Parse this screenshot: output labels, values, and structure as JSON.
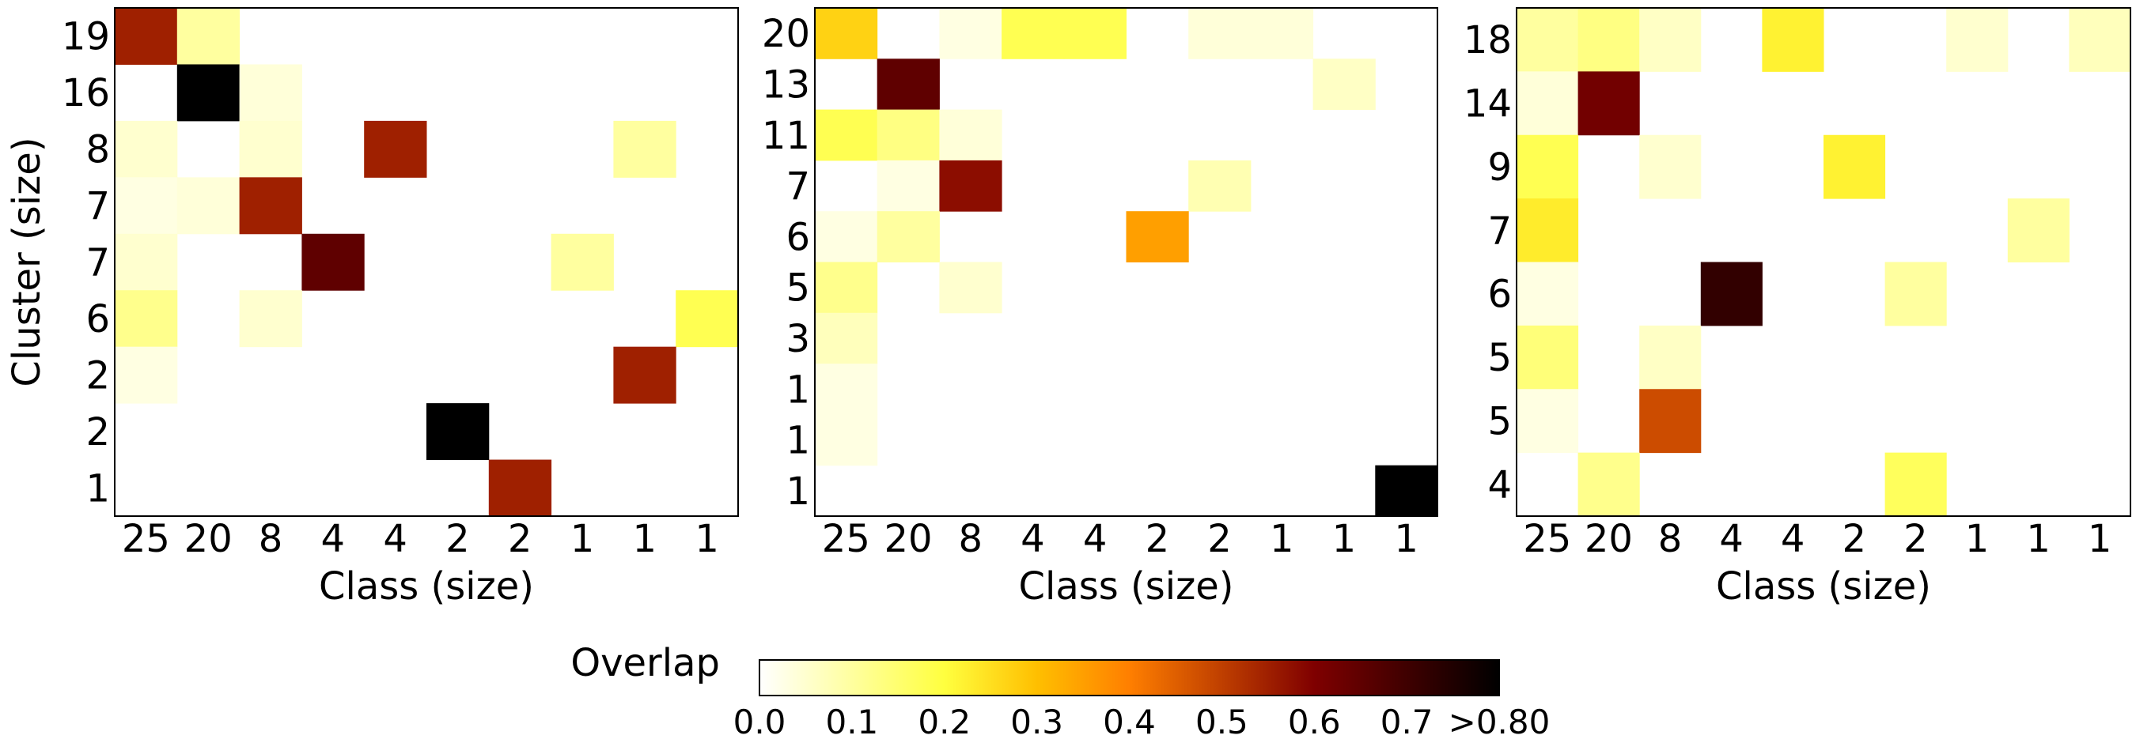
{
  "colormap": {
    "name": "afmhot_r",
    "stops": [
      {
        "t": 0.0,
        "color": "#ffffff"
      },
      {
        "t": 0.125,
        "color": "#ffff9f"
      },
      {
        "t": 0.25,
        "color": "#ffff3f"
      },
      {
        "t": 0.375,
        "color": "#ffbf00"
      },
      {
        "t": 0.5,
        "color": "#ff7f00"
      },
      {
        "t": 0.625,
        "color": "#bf3f00"
      },
      {
        "t": 0.75,
        "color": "#7f0000"
      },
      {
        "t": 0.875,
        "color": "#3f0000"
      },
      {
        "t": 1.0,
        "color": "#000000"
      }
    ]
  },
  "colorbar": {
    "label": "Overlap",
    "vmin": 0.0,
    "vmax": 0.8,
    "ticks": [
      {
        "value": 0.0,
        "label": "0.0"
      },
      {
        "value": 0.1,
        "label": "0.1"
      },
      {
        "value": 0.2,
        "label": "0.2"
      },
      {
        "value": 0.3,
        "label": "0.3"
      },
      {
        "value": 0.4,
        "label": "0.4"
      },
      {
        "value": 0.5,
        "label": "0.5"
      },
      {
        "value": 0.6,
        "label": "0.6"
      },
      {
        "value": 0.7,
        "label": "0.7"
      },
      {
        "value": 0.8,
        "label": ">0.80"
      }
    ]
  },
  "chart_data": [
    {
      "type": "heatmap",
      "xlabel": "Class (size)",
      "ylabel": "Cluster (size)",
      "x_labels": [
        "25",
        "20",
        "8",
        "4",
        "4",
        "2",
        "2",
        "1",
        "1",
        "1"
      ],
      "y_labels": [
        "19",
        "16",
        "8",
        "7",
        "7",
        "6",
        "2",
        "2",
        "1"
      ],
      "values": [
        [
          0.55,
          0.1,
          0,
          0,
          0,
          0,
          0,
          0,
          0,
          0
        ],
        [
          0,
          0.8,
          0.04,
          0,
          0,
          0,
          0,
          0,
          0,
          0
        ],
        [
          0.05,
          0,
          0.05,
          0,
          0.55,
          0,
          0,
          0,
          0.1,
          0
        ],
        [
          0.03,
          0.04,
          0.55,
          0,
          0,
          0,
          0,
          0,
          0,
          0
        ],
        [
          0.05,
          0,
          0,
          0.65,
          0,
          0,
          0,
          0.1,
          0,
          0
        ],
        [
          0.12,
          0,
          0.05,
          0,
          0,
          0,
          0,
          0,
          0,
          0.18
        ],
        [
          0.03,
          0,
          0,
          0,
          0,
          0,
          0,
          0,
          0.55,
          0
        ],
        [
          0,
          0,
          0,
          0,
          0,
          0.8,
          0,
          0,
          0,
          0
        ],
        [
          0,
          0,
          0,
          0,
          0,
          0,
          0.55,
          0,
          0,
          0
        ]
      ]
    },
    {
      "type": "heatmap",
      "xlabel": "Class (size)",
      "ylabel": "",
      "x_labels": [
        "25",
        "20",
        "8",
        "4",
        "4",
        "2",
        "2",
        "1",
        "1",
        "1"
      ],
      "y_labels": [
        "20",
        "13",
        "11",
        "7",
        "6",
        "5",
        "3",
        "1",
        "1",
        "1"
      ],
      "values": [
        [
          0.27,
          0,
          0.03,
          0.18,
          0.18,
          0,
          0.04,
          0.04,
          0,
          0
        ],
        [
          0,
          0.65,
          0,
          0,
          0,
          0,
          0,
          0,
          0.06,
          0
        ],
        [
          0.18,
          0.13,
          0.04,
          0,
          0,
          0,
          0,
          0,
          0,
          0
        ],
        [
          0,
          0.03,
          0.58,
          0,
          0,
          0,
          0.08,
          0,
          0,
          0
        ],
        [
          0.03,
          0.1,
          0,
          0,
          0,
          0.35,
          0,
          0,
          0,
          0
        ],
        [
          0.12,
          0,
          0.05,
          0,
          0,
          0,
          0,
          0,
          0,
          0
        ],
        [
          0.07,
          0,
          0,
          0,
          0,
          0,
          0,
          0,
          0,
          0
        ],
        [
          0.03,
          0,
          0,
          0,
          0,
          0,
          0,
          0,
          0,
          0
        ],
        [
          0.03,
          0,
          0,
          0,
          0,
          0,
          0,
          0,
          0,
          0
        ],
        [
          0,
          0,
          0,
          0,
          0,
          0,
          0,
          0,
          0,
          0.8
        ]
      ]
    },
    {
      "type": "heatmap",
      "xlabel": "Class (size)",
      "ylabel": "",
      "x_labels": [
        "25",
        "20",
        "8",
        "4",
        "4",
        "2",
        "2",
        "1",
        "1",
        "1"
      ],
      "y_labels": [
        "18",
        "14",
        "9",
        "7",
        "6",
        "5",
        "5",
        "4"
      ],
      "values": [
        [
          0.1,
          0.13,
          0.06,
          0,
          0.22,
          0,
          0,
          0.05,
          0,
          0.07
        ],
        [
          0.04,
          0.62,
          0,
          0,
          0,
          0,
          0,
          0,
          0,
          0
        ],
        [
          0.18,
          0,
          0.05,
          0,
          0,
          0.22,
          0,
          0,
          0,
          0
        ],
        [
          0.23,
          0,
          0,
          0,
          0,
          0,
          0,
          0,
          0.1,
          0
        ],
        [
          0.03,
          0,
          0,
          0.72,
          0,
          0,
          0.1,
          0,
          0,
          0
        ],
        [
          0.14,
          0,
          0.06,
          0,
          0,
          0,
          0,
          0,
          0,
          0
        ],
        [
          0.03,
          0,
          0.48,
          0,
          0,
          0,
          0,
          0,
          0,
          0
        ],
        [
          0,
          0.12,
          0,
          0,
          0,
          0,
          0.17,
          0,
          0,
          0
        ]
      ]
    }
  ]
}
